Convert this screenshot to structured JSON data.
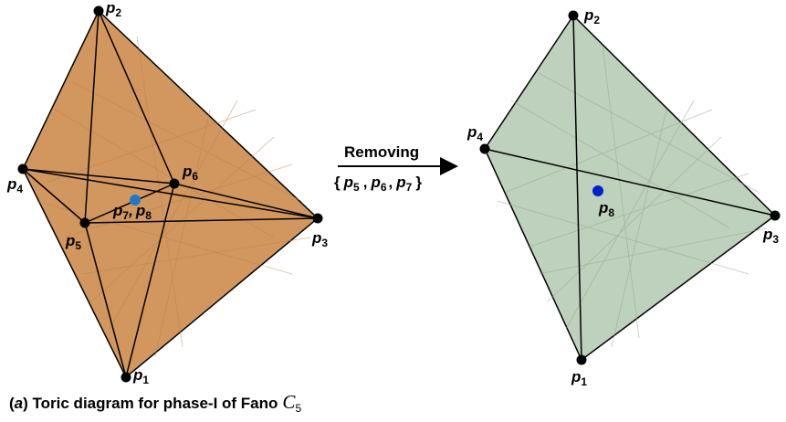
{
  "left_diagram": {
    "points": {
      "p1": {
        "name": "p",
        "sub": "1"
      },
      "p2": {
        "name": "p",
        "sub": "2"
      },
      "p3": {
        "name": "p",
        "sub": "3"
      },
      "p4": {
        "name": "p",
        "sub": "4"
      },
      "p5": {
        "name": "p",
        "sub": "5"
      },
      "p6": {
        "name": "p",
        "sub": "6"
      },
      "p78": {
        "name_a": "p",
        "sub_a": "7",
        "sep": ",",
        "name_b": "p",
        "sub_b": "8"
      }
    },
    "fill_color": "#d2975e",
    "center_point_color": "#1e7ac8"
  },
  "arrow": {
    "label": "Removing",
    "set_open": "{",
    "set_items": [
      {
        "name": "p",
        "sub": "5"
      },
      {
        "name": "p",
        "sub": "6"
      },
      {
        "name": "p",
        "sub": "7"
      }
    ],
    "set_sep": ",",
    "set_close": "}"
  },
  "right_diagram": {
    "points": {
      "p1": {
        "name": "p",
        "sub": "1"
      },
      "p2": {
        "name": "p",
        "sub": "2"
      },
      "p3": {
        "name": "p",
        "sub": "3"
      },
      "p4": {
        "name": "p",
        "sub": "4"
      },
      "p8": {
        "name": "p",
        "sub": "8"
      }
    },
    "fill_color": "#bed1bc",
    "center_point_color": "#0022cc"
  },
  "caption": {
    "label_a": "a",
    "text": "Toric diagram for phase-I of Fano",
    "math_letter": "C",
    "math_sub": "5"
  }
}
